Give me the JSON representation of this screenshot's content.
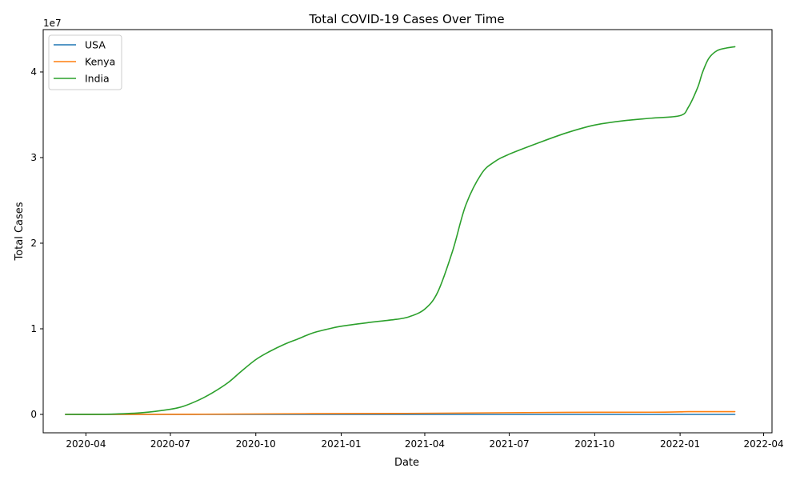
{
  "chart_data": {
    "type": "line",
    "title": "Total COVID-19 Cases Over Time",
    "xlabel": "Date",
    "ylabel": "Total Cases",
    "y_offset_label": "1e7",
    "xlim": [
      "2020-02-15",
      "2022-04-10"
    ],
    "ylim": [
      -2150000,
      44950000
    ],
    "x_ticks": [
      {
        "date": "2020-04-01",
        "label": "2020-04"
      },
      {
        "date": "2020-07-01",
        "label": "2020-07"
      },
      {
        "date": "2020-10-01",
        "label": "2020-10"
      },
      {
        "date": "2021-01-01",
        "label": "2021-01"
      },
      {
        "date": "2021-04-01",
        "label": "2021-04"
      },
      {
        "date": "2021-07-01",
        "label": "2021-07"
      },
      {
        "date": "2021-10-01",
        "label": "2021-10"
      },
      {
        "date": "2022-01-01",
        "label": "2022-01"
      },
      {
        "date": "2022-04-01",
        "label": "2022-04"
      }
    ],
    "y_ticks": [
      {
        "value": 0,
        "label": "0"
      },
      {
        "value": 10000000,
        "label": "1"
      },
      {
        "value": 20000000,
        "label": "2"
      },
      {
        "value": 30000000,
        "label": "3"
      },
      {
        "value": 40000000,
        "label": "4"
      }
    ],
    "grid": false,
    "legend_position": "top-left",
    "series": [
      {
        "name": "USA",
        "color": "#1f77b4",
        "points": [
          [
            "2020-03-10",
            0
          ],
          [
            "2022-03-01",
            0
          ]
        ]
      },
      {
        "name": "Kenya",
        "color": "#ff7f0e",
        "points": [
          [
            "2020-03-10",
            0
          ],
          [
            "2020-06-01",
            2600
          ],
          [
            "2020-09-01",
            34000
          ],
          [
            "2020-12-01",
            85000
          ],
          [
            "2021-03-01",
            108000
          ],
          [
            "2021-06-01",
            175000
          ],
          [
            "2021-09-01",
            240000
          ],
          [
            "2021-12-01",
            256000
          ],
          [
            "2022-01-01",
            296000
          ],
          [
            "2022-01-10",
            318000
          ],
          [
            "2022-03-01",
            323000
          ]
        ]
      },
      {
        "name": "India",
        "color": "#2ca02c",
        "points": [
          [
            "2020-03-10",
            0
          ],
          [
            "2020-04-01",
            2000
          ],
          [
            "2020-05-01",
            40000
          ],
          [
            "2020-06-01",
            200000
          ],
          [
            "2020-07-01",
            600000
          ],
          [
            "2020-07-15",
            950000
          ],
          [
            "2020-08-01",
            1700000
          ],
          [
            "2020-08-15",
            2500000
          ],
          [
            "2020-09-01",
            3700000
          ],
          [
            "2020-09-15",
            5000000
          ],
          [
            "2020-10-01",
            6400000
          ],
          [
            "2020-10-15",
            7300000
          ],
          [
            "2020-11-01",
            8200000
          ],
          [
            "2020-11-15",
            8800000
          ],
          [
            "2020-12-01",
            9500000
          ],
          [
            "2020-12-15",
            9900000
          ],
          [
            "2021-01-01",
            10300000
          ],
          [
            "2021-02-01",
            10750000
          ],
          [
            "2021-03-01",
            11100000
          ],
          [
            "2021-03-15",
            11400000
          ],
          [
            "2021-04-01",
            12300000
          ],
          [
            "2021-04-15",
            14300000
          ],
          [
            "2021-05-01",
            19100000
          ],
          [
            "2021-05-15",
            24400000
          ],
          [
            "2021-06-01",
            28100000
          ],
          [
            "2021-06-15",
            29500000
          ],
          [
            "2021-07-01",
            30400000
          ],
          [
            "2021-08-01",
            31700000
          ],
          [
            "2021-09-01",
            32900000
          ],
          [
            "2021-10-01",
            33800000
          ],
          [
            "2021-11-01",
            34300000
          ],
          [
            "2021-12-01",
            34600000
          ],
          [
            "2022-01-01",
            34900000
          ],
          [
            "2022-01-10",
            35900000
          ],
          [
            "2022-01-20",
            38200000
          ],
          [
            "2022-01-25",
            39900000
          ],
          [
            "2022-02-01",
            41600000
          ],
          [
            "2022-02-10",
            42500000
          ],
          [
            "2022-02-20",
            42800000
          ],
          [
            "2022-03-01",
            42950000
          ]
        ]
      }
    ]
  }
}
